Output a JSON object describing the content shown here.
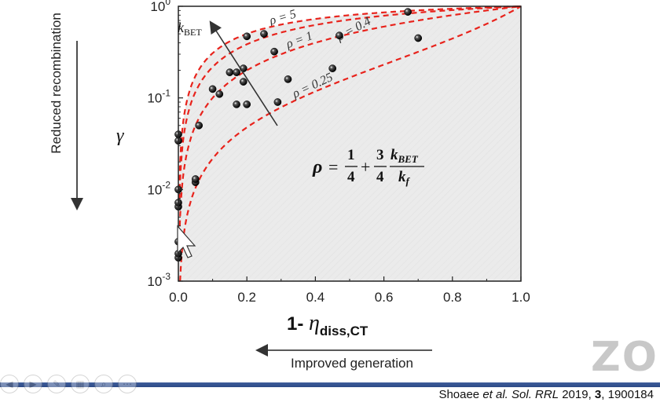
{
  "chart_data": {
    "type": "scatter",
    "x_scale": "linear",
    "y_scale": "log",
    "xlim": [
      0.0,
      1.0
    ],
    "ylim": [
      0.001,
      1.0
    ],
    "xticks": [
      "0.0",
      "0.2",
      "0.4",
      "0.6",
      "0.8",
      "1.0"
    ],
    "yticks": [
      {
        "base": "10",
        "exp": "-3"
      },
      {
        "base": "10",
        "exp": "-2"
      },
      {
        "base": "10",
        "exp": "-1"
      },
      {
        "base": "10",
        "exp": "0"
      }
    ],
    "xlabel_prefix": "1- ",
    "xlabel_symbol": "η",
    "xlabel_sub": "diss,CT",
    "ylabel": "γ",
    "points": [
      [
        0.0,
        0.0018
      ],
      [
        0.0,
        0.002
      ],
      [
        0.0,
        0.0027
      ],
      [
        0.0,
        0.0065
      ],
      [
        0.0,
        0.0072
      ],
      [
        0.0,
        0.01
      ],
      [
        0.0,
        0.034
      ],
      [
        0.0,
        0.04
      ],
      [
        0.05,
        0.012
      ],
      [
        0.05,
        0.013
      ],
      [
        0.06,
        0.05
      ],
      [
        0.1,
        0.125
      ],
      [
        0.12,
        0.11
      ],
      [
        0.15,
        0.19
      ],
      [
        0.17,
        0.19
      ],
      [
        0.17,
        0.085
      ],
      [
        0.19,
        0.15
      ],
      [
        0.19,
        0.21
      ],
      [
        0.2,
        0.085
      ],
      [
        0.2,
        0.47
      ],
      [
        0.25,
        0.5
      ],
      [
        0.28,
        0.32
      ],
      [
        0.29,
        0.09
      ],
      [
        0.32,
        0.16
      ],
      [
        0.45,
        0.21
      ],
      [
        0.47,
        0.48
      ],
      [
        0.67,
        0.87
      ],
      [
        0.7,
        0.45
      ]
    ],
    "curves": [
      {
        "label": "ρ = 5",
        "rho": 5
      },
      {
        "label": "ρ = 1",
        "rho": 1
      },
      {
        "label": "ρ = 0.4",
        "rho": 0.4
      },
      {
        "label": "ρ = 0.25",
        "rho": 0.25
      }
    ],
    "curve_color": "#e8231c",
    "shade_color": "#e6e6e6",
    "arrow_label": "k",
    "arrow_label_sub": "BET",
    "formula": {
      "lhs": "ρ",
      "eq": "=",
      "frac1_num": "1",
      "frac1_den": "4",
      "plus": "+",
      "frac2_num": "3",
      "frac2_den": "4",
      "frac3_num": "k",
      "frac3_num_sub": "BET",
      "frac3_den": "k",
      "frac3_den_sub": "f"
    }
  },
  "annotations": {
    "left_axis_text": "Reduced recombination",
    "bottom_arrow_text": "Improved generation"
  },
  "citation": {
    "authors": "Shoaee ",
    "etal": "et al. Sol. RRL",
    "year": " 2019, ",
    "volume": "3",
    "article": ", 1900184"
  },
  "watermark": "ZO"
}
